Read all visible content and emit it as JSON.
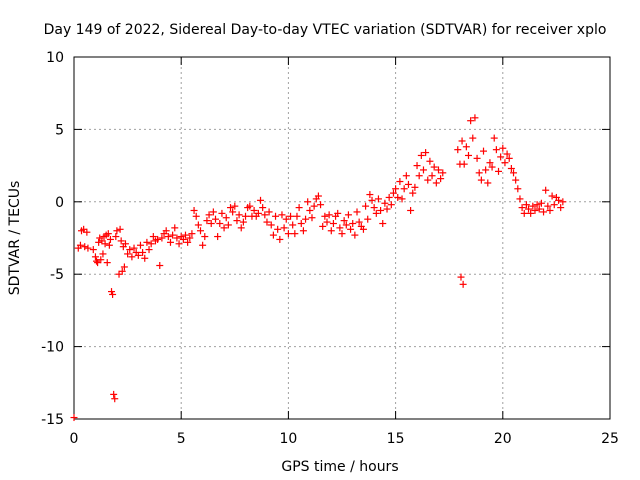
{
  "chart_data": {
    "type": "scatter",
    "title": "Day 149 of 2022, Sidereal Day-to-day VTEC variation (SDTVAR) for receiver xplo",
    "xlabel": "GPS time / hours",
    "ylabel": "SDTVAR / TECUs",
    "xlim": [
      0,
      25
    ],
    "ylim": [
      -15,
      10
    ],
    "xticks": [
      0,
      5,
      10,
      15,
      20,
      25
    ],
    "yticks": [
      -15,
      -10,
      -5,
      0,
      5,
      10
    ],
    "xtick_labels": [
      "0",
      "5",
      "10",
      "15",
      "20",
      "25"
    ],
    "ytick_labels": [
      "-15",
      "-10",
      "-5",
      "0",
      "5",
      "10"
    ],
    "grid": true,
    "marker": "+",
    "series": [
      {
        "name": "SDTVAR",
        "color": "#ff0000",
        "points": [
          [
            0.0,
            -14.9
          ],
          [
            0.2,
            -3.2
          ],
          [
            0.3,
            -3.0
          ],
          [
            0.35,
            -2.0
          ],
          [
            0.45,
            -1.9
          ],
          [
            0.5,
            -3.1
          ],
          [
            0.6,
            -2.1
          ],
          [
            0.65,
            -3.2
          ],
          [
            0.9,
            -3.3
          ],
          [
            1.0,
            -3.8
          ],
          [
            1.05,
            -4.1
          ],
          [
            1.1,
            -4.2
          ],
          [
            1.15,
            -2.8
          ],
          [
            1.2,
            -2.5
          ],
          [
            1.25,
            -4.0
          ],
          [
            1.3,
            -2.7
          ],
          [
            1.35,
            -3.6
          ],
          [
            1.4,
            -2.4
          ],
          [
            1.45,
            -2.9
          ],
          [
            1.5,
            -2.3
          ],
          [
            1.55,
            -4.2
          ],
          [
            1.6,
            -2.2
          ],
          [
            1.65,
            -3.0
          ],
          [
            1.7,
            -2.6
          ],
          [
            1.75,
            -6.2
          ],
          [
            1.8,
            -6.4
          ],
          [
            1.85,
            -13.3
          ],
          [
            1.9,
            -13.6
          ],
          [
            1.95,
            -2.4
          ],
          [
            2.0,
            -2.0
          ],
          [
            2.1,
            -5.0
          ],
          [
            2.15,
            -1.9
          ],
          [
            2.2,
            -2.7
          ],
          [
            2.25,
            -4.8
          ],
          [
            2.3,
            -3.1
          ],
          [
            2.35,
            -4.5
          ],
          [
            2.4,
            -2.9
          ],
          [
            2.5,
            -3.6
          ],
          [
            2.6,
            -3.3
          ],
          [
            2.7,
            -3.8
          ],
          [
            2.8,
            -3.2
          ],
          [
            2.9,
            -3.5
          ],
          [
            3.0,
            -3.7
          ],
          [
            3.1,
            -3.0
          ],
          [
            3.2,
            -3.5
          ],
          [
            3.3,
            -3.9
          ],
          [
            3.4,
            -2.8
          ],
          [
            3.5,
            -3.3
          ],
          [
            3.6,
            -2.9
          ],
          [
            3.7,
            -2.4
          ],
          [
            3.8,
            -2.7
          ],
          [
            3.9,
            -2.6
          ],
          [
            4.0,
            -4.4
          ],
          [
            4.1,
            -2.5
          ],
          [
            4.2,
            -2.2
          ],
          [
            4.3,
            -2.0
          ],
          [
            4.4,
            -2.4
          ],
          [
            4.5,
            -2.8
          ],
          [
            4.6,
            -2.3
          ],
          [
            4.7,
            -1.8
          ],
          [
            4.8,
            -2.5
          ],
          [
            4.9,
            -2.9
          ],
          [
            5.0,
            -2.4
          ],
          [
            5.1,
            -2.6
          ],
          [
            5.2,
            -2.3
          ],
          [
            5.3,
            -2.8
          ],
          [
            5.4,
            -2.5
          ],
          [
            5.5,
            -2.2
          ],
          [
            5.6,
            -0.6
          ],
          [
            5.7,
            -1.0
          ],
          [
            5.8,
            -1.6
          ],
          [
            5.9,
            -2.0
          ],
          [
            6.0,
            -3.0
          ],
          [
            6.1,
            -2.4
          ],
          [
            6.2,
            -1.3
          ],
          [
            6.3,
            -0.9
          ],
          [
            6.4,
            -1.5
          ],
          [
            6.5,
            -0.7
          ],
          [
            6.6,
            -1.2
          ],
          [
            6.7,
            -2.4
          ],
          [
            6.8,
            -1.5
          ],
          [
            6.9,
            -0.8
          ],
          [
            7.0,
            -1.8
          ],
          [
            7.1,
            -1.1
          ],
          [
            7.2,
            -1.6
          ],
          [
            7.3,
            -0.4
          ],
          [
            7.4,
            -0.7
          ],
          [
            7.5,
            -0.3
          ],
          [
            7.6,
            -1.3
          ],
          [
            7.7,
            -0.9
          ],
          [
            7.8,
            -1.8
          ],
          [
            7.9,
            -1.4
          ],
          [
            8.0,
            -1.0
          ],
          [
            8.1,
            -0.4
          ],
          [
            8.2,
            -0.3
          ],
          [
            8.3,
            -1.0
          ],
          [
            8.4,
            -0.6
          ],
          [
            8.5,
            -1.0
          ],
          [
            8.6,
            -0.8
          ],
          [
            8.7,
            0.1
          ],
          [
            8.8,
            -0.4
          ],
          [
            8.9,
            -0.9
          ],
          [
            9.0,
            -1.4
          ],
          [
            9.1,
            -0.7
          ],
          [
            9.2,
            -1.6
          ],
          [
            9.3,
            -2.3
          ],
          [
            9.4,
            -1.0
          ],
          [
            9.5,
            -1.9
          ],
          [
            9.6,
            -2.6
          ],
          [
            9.7,
            -0.9
          ],
          [
            9.8,
            -1.8
          ],
          [
            9.9,
            -1.2
          ],
          [
            10.0,
            -2.2
          ],
          [
            10.1,
            -1.0
          ],
          [
            10.2,
            -1.6
          ],
          [
            10.3,
            -2.2
          ],
          [
            10.4,
            -1.0
          ],
          [
            10.5,
            -0.4
          ],
          [
            10.6,
            -1.5
          ],
          [
            10.7,
            -2.0
          ],
          [
            10.8,
            -1.2
          ],
          [
            10.9,
            0.0
          ],
          [
            11.0,
            -0.6
          ],
          [
            11.1,
            -1.1
          ],
          [
            11.2,
            -0.3
          ],
          [
            11.3,
            0.2
          ],
          [
            11.4,
            0.4
          ],
          [
            11.5,
            -0.2
          ],
          [
            11.6,
            -1.7
          ],
          [
            11.7,
            -1.0
          ],
          [
            11.8,
            -1.4
          ],
          [
            11.9,
            -0.9
          ],
          [
            12.0,
            -2.0
          ],
          [
            12.1,
            -1.5
          ],
          [
            12.2,
            -1.0
          ],
          [
            12.3,
            -0.8
          ],
          [
            12.4,
            -1.8
          ],
          [
            12.5,
            -2.2
          ],
          [
            12.6,
            -1.3
          ],
          [
            12.7,
            -1.6
          ],
          [
            12.8,
            -0.9
          ],
          [
            12.9,
            -1.9
          ],
          [
            13.0,
            -1.5
          ],
          [
            13.1,
            -2.3
          ],
          [
            13.2,
            -0.7
          ],
          [
            13.3,
            -1.4
          ],
          [
            13.4,
            -1.7
          ],
          [
            13.5,
            -1.9
          ],
          [
            13.6,
            -0.3
          ],
          [
            13.7,
            -1.2
          ],
          [
            13.8,
            0.5
          ],
          [
            13.9,
            0.1
          ],
          [
            14.0,
            -0.4
          ],
          [
            14.1,
            -0.8
          ],
          [
            14.2,
            0.2
          ],
          [
            14.3,
            -0.6
          ],
          [
            14.4,
            -1.5
          ],
          [
            14.5,
            -0.1
          ],
          [
            14.6,
            -0.5
          ],
          [
            14.7,
            0.3
          ],
          [
            14.8,
            -0.2
          ],
          [
            14.9,
            0.6
          ],
          [
            15.0,
            0.9
          ],
          [
            15.1,
            0.3
          ],
          [
            15.2,
            1.4
          ],
          [
            15.3,
            0.2
          ],
          [
            15.4,
            0.9
          ],
          [
            15.5,
            1.8
          ],
          [
            15.6,
            1.2
          ],
          [
            15.7,
            -0.6
          ],
          [
            15.8,
            0.6
          ],
          [
            15.9,
            1.0
          ],
          [
            16.0,
            2.5
          ],
          [
            16.1,
            1.8
          ],
          [
            16.2,
            3.2
          ],
          [
            16.3,
            2.2
          ],
          [
            16.4,
            3.4
          ],
          [
            16.5,
            1.5
          ],
          [
            16.6,
            2.8
          ],
          [
            16.7,
            1.8
          ],
          [
            16.8,
            2.4
          ],
          [
            16.9,
            1.3
          ],
          [
            17.0,
            2.2
          ],
          [
            17.1,
            1.6
          ],
          [
            17.2,
            2.0
          ],
          [
            17.9,
            3.6
          ],
          [
            18.0,
            2.6
          ],
          [
            18.05,
            -5.2
          ],
          [
            18.1,
            4.2
          ],
          [
            18.15,
            -5.7
          ],
          [
            18.2,
            2.6
          ],
          [
            18.3,
            3.8
          ],
          [
            18.4,
            3.2
          ],
          [
            18.5,
            5.6
          ],
          [
            18.6,
            4.4
          ],
          [
            18.7,
            5.8
          ],
          [
            18.8,
            3.0
          ],
          [
            18.9,
            2.0
          ],
          [
            19.0,
            1.5
          ],
          [
            19.1,
            3.5
          ],
          [
            19.2,
            2.2
          ],
          [
            19.3,
            1.3
          ],
          [
            19.4,
            2.7
          ],
          [
            19.5,
            2.4
          ],
          [
            19.6,
            4.4
          ],
          [
            19.7,
            3.6
          ],
          [
            19.8,
            2.1
          ],
          [
            19.9,
            3.1
          ],
          [
            20.0,
            3.7
          ],
          [
            20.1,
            2.7
          ],
          [
            20.2,
            3.3
          ],
          [
            20.3,
            3.0
          ],
          [
            20.4,
            2.3
          ],
          [
            20.5,
            2.0
          ],
          [
            20.6,
            1.5
          ],
          [
            20.7,
            0.9
          ],
          [
            20.8,
            0.2
          ],
          [
            20.9,
            -0.4
          ],
          [
            21.0,
            -0.8
          ],
          [
            21.1,
            -0.2
          ],
          [
            21.2,
            -0.5
          ],
          [
            21.3,
            -0.8
          ],
          [
            21.4,
            -0.3
          ],
          [
            21.5,
            -0.6
          ],
          [
            21.6,
            -0.2
          ],
          [
            21.7,
            -0.5
          ],
          [
            21.8,
            -0.1
          ],
          [
            21.9,
            -0.7
          ],
          [
            22.0,
            0.8
          ],
          [
            22.1,
            -0.3
          ],
          [
            22.2,
            -0.6
          ],
          [
            22.3,
            0.4
          ],
          [
            22.4,
            -0.2
          ],
          [
            22.5,
            0.3
          ],
          [
            22.6,
            0.1
          ],
          [
            22.7,
            -0.4
          ],
          [
            22.8,
            0.0
          ]
        ]
      }
    ]
  }
}
